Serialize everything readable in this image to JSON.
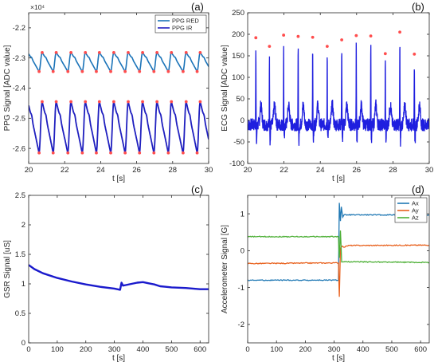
{
  "chart_data": [
    {
      "id": "a",
      "type": "line",
      "panel_label": "(a)",
      "xlabel": "t [s]",
      "ylabel": "PPG Signal [ADC value]",
      "exponent_label": "×10⁴",
      "xlim": [
        20,
        30
      ],
      "ylim": [
        -2.65,
        -2.15
      ],
      "xticks": [
        20,
        22,
        24,
        26,
        28,
        30
      ],
      "yticks": [
        -2.6,
        -2.5,
        -2.4,
        -2.3,
        -2.2
      ],
      "ytick_labels": [
        "-2.6",
        "-2.5",
        "-2.4",
        "-2.3",
        "-2.2"
      ],
      "legend_position": "top-right",
      "beat_times": [
        20.75,
        21.53,
        22.35,
        23.15,
        23.93,
        24.73,
        25.53,
        26.33,
        27.13,
        27.93,
        28.75,
        29.53
      ],
      "series": [
        {
          "name": "PPG RED",
          "color": "#1a73b8",
          "peak": -2.282,
          "trough": -2.345,
          "peaks_marked": true,
          "troughs_marked": true
        },
        {
          "name": "PPG IR",
          "color": "#1f1fbf",
          "peak": -2.445,
          "trough": -2.615,
          "peaks_marked": true,
          "troughs_marked": true
        }
      ],
      "marker_color": "#ff4d4d"
    },
    {
      "id": "b",
      "type": "line",
      "panel_label": "(b)",
      "xlabel": "t [s]",
      "ylabel": "ECG Signal [ADC value]",
      "xlim": [
        20,
        30
      ],
      "ylim": [
        -100,
        250
      ],
      "xticks": [
        20,
        22,
        24,
        26,
        28,
        30
      ],
      "yticks": [
        -100,
        -50,
        0,
        50,
        100,
        150,
        200,
        250
      ],
      "series": [
        {
          "name": "ECG",
          "color": "#1f1fdf",
          "r_peaks_t": [
            20.45,
            21.2,
            21.98,
            22.78,
            23.58,
            24.38,
            25.18,
            25.98,
            26.78,
            27.58,
            28.38,
            29.18
          ],
          "r_peaks_v": [
            192,
            172,
            198,
            195,
            193,
            172,
            187,
            197,
            196,
            155,
            205,
            154
          ]
        }
      ],
      "marker_color": "#ff4d4d"
    },
    {
      "id": "c",
      "type": "line",
      "panel_label": "(c)",
      "xlabel": "t [s]",
      "ylabel": "GSR Signal [uS]",
      "xlim": [
        0,
        630
      ],
      "ylim": [
        0,
        2.5
      ],
      "xticks": [
        0,
        100,
        200,
        300,
        400,
        500,
        600
      ],
      "yticks": [
        0,
        0.5,
        1,
        1.5,
        2,
        2.5
      ],
      "series": [
        {
          "name": "GSR",
          "color": "#1a1acc",
          "x": [
            0,
            20,
            50,
            100,
            150,
            200,
            250,
            300,
            320,
            325,
            330,
            340,
            360,
            380,
            400,
            420,
            440,
            460,
            480,
            500,
            550,
            600,
            630
          ],
          "y": [
            1.32,
            1.25,
            1.18,
            1.1,
            1.04,
            0.99,
            0.95,
            0.92,
            0.9,
            1.02,
            0.97,
            0.98,
            1.0,
            1.02,
            1.03,
            1.01,
            0.99,
            0.96,
            0.95,
            0.94,
            0.93,
            0.91,
            0.91
          ]
        }
      ]
    },
    {
      "id": "d",
      "type": "line",
      "panel_label": "(d)",
      "xlabel": "t [s]",
      "ylabel": "Accelerometer Signal [G]",
      "xlim": [
        0,
        630
      ],
      "ylim": [
        -2.5,
        1.5
      ],
      "xticks": [
        0,
        100,
        200,
        300,
        400,
        500,
        600
      ],
      "yticks": [
        -2,
        -1,
        0,
        1
      ],
      "legend_position": "top-right",
      "series": [
        {
          "name": "Ax",
          "color": "#1f78b4",
          "x": [
            0,
            315,
            318,
            322,
            325,
            330,
            335,
            630
          ],
          "y": [
            -0.8,
            -0.8,
            1.3,
            0.8,
            1.2,
            0.9,
            0.97,
            0.97
          ]
        },
        {
          "name": "Ay",
          "color": "#e8601c",
          "x": [
            0,
            315,
            318,
            322,
            326,
            335,
            350,
            630
          ],
          "y": [
            -0.35,
            -0.33,
            -1.25,
            0.05,
            0.12,
            0.1,
            0.14,
            0.15
          ]
        },
        {
          "name": "Az",
          "color": "#4caf35",
          "x": [
            0,
            315,
            318,
            322,
            326,
            335,
            630
          ],
          "y": [
            0.38,
            0.38,
            -0.2,
            0.55,
            -0.3,
            -0.3,
            -0.32
          ]
        }
      ]
    }
  ]
}
